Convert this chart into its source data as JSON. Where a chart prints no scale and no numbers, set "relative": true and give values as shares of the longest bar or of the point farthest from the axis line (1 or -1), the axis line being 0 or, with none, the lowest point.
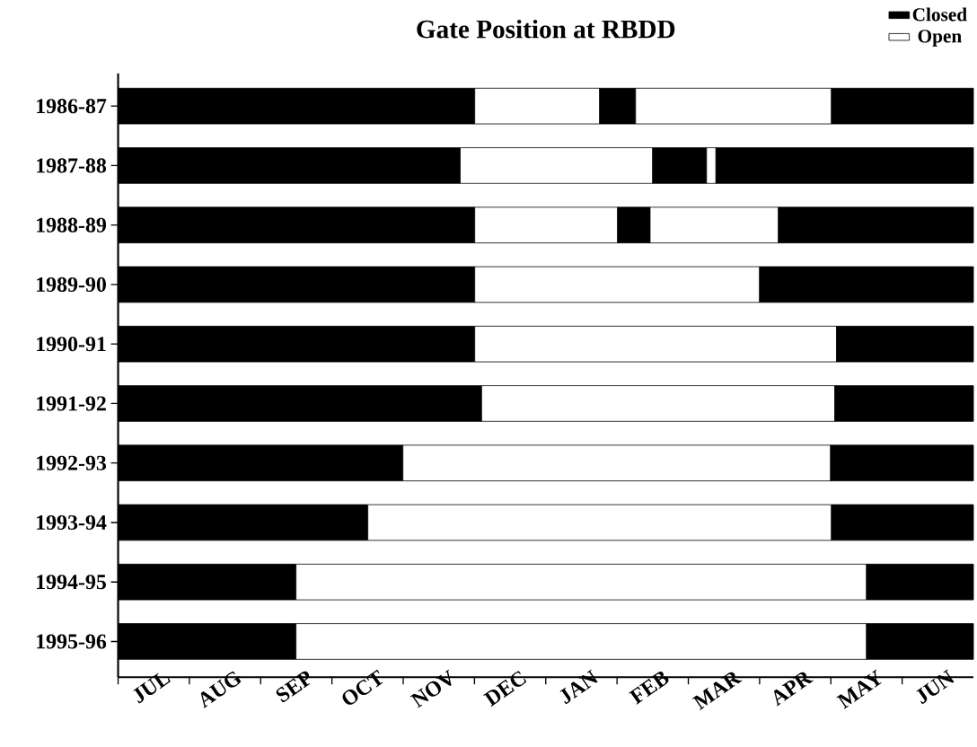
{
  "chart_data": {
    "type": "bar",
    "orientation": "horizontal",
    "stacked": true,
    "relative": true,
    "title": "Gate Position at RBDD",
    "categories": [
      "1986-87",
      "1987-88",
      "1988-89",
      "1989-90",
      "1990-91",
      "1991-92",
      "1992-93",
      "1993-94",
      "1994-95",
      "1995-96"
    ],
    "series": [
      {
        "name": "Closed",
        "color": "#000000",
        "values": [
          0.417,
          0.4,
          0.417,
          0.417,
          0.417,
          0.425,
          0.333,
          0.292,
          0.208,
          0.208
        ]
      },
      {
        "name": "Open",
        "color": "#ffffff",
        "values": [
          0.146,
          0.225,
          0.167,
          0.333,
          0.423,
          0.413,
          0.5,
          0.542,
          0.667,
          0.667
        ]
      },
      {
        "color": "#000000",
        "values": [
          0.042,
          0.063,
          0.038,
          0.25,
          0.16,
          0.162,
          0.167,
          0.166,
          0.125,
          0.125
        ]
      },
      {
        "color": "#ffffff",
        "values": [
          0.229,
          0.011,
          0.15,
          null,
          null,
          null,
          null,
          null,
          null,
          null
        ]
      },
      {
        "color": "#000000",
        "values": [
          0.166,
          0.301,
          0.228,
          null,
          null,
          null,
          null,
          null,
          null,
          null
        ]
      }
    ],
    "annotations": [
      "JUL",
      "AUG",
      "SEP",
      "OCT",
      "NOV",
      "DEC",
      "JAN",
      "FEB",
      "MAR",
      "APR",
      "MAY",
      "JUN"
    ],
    "legend": "top right"
  }
}
